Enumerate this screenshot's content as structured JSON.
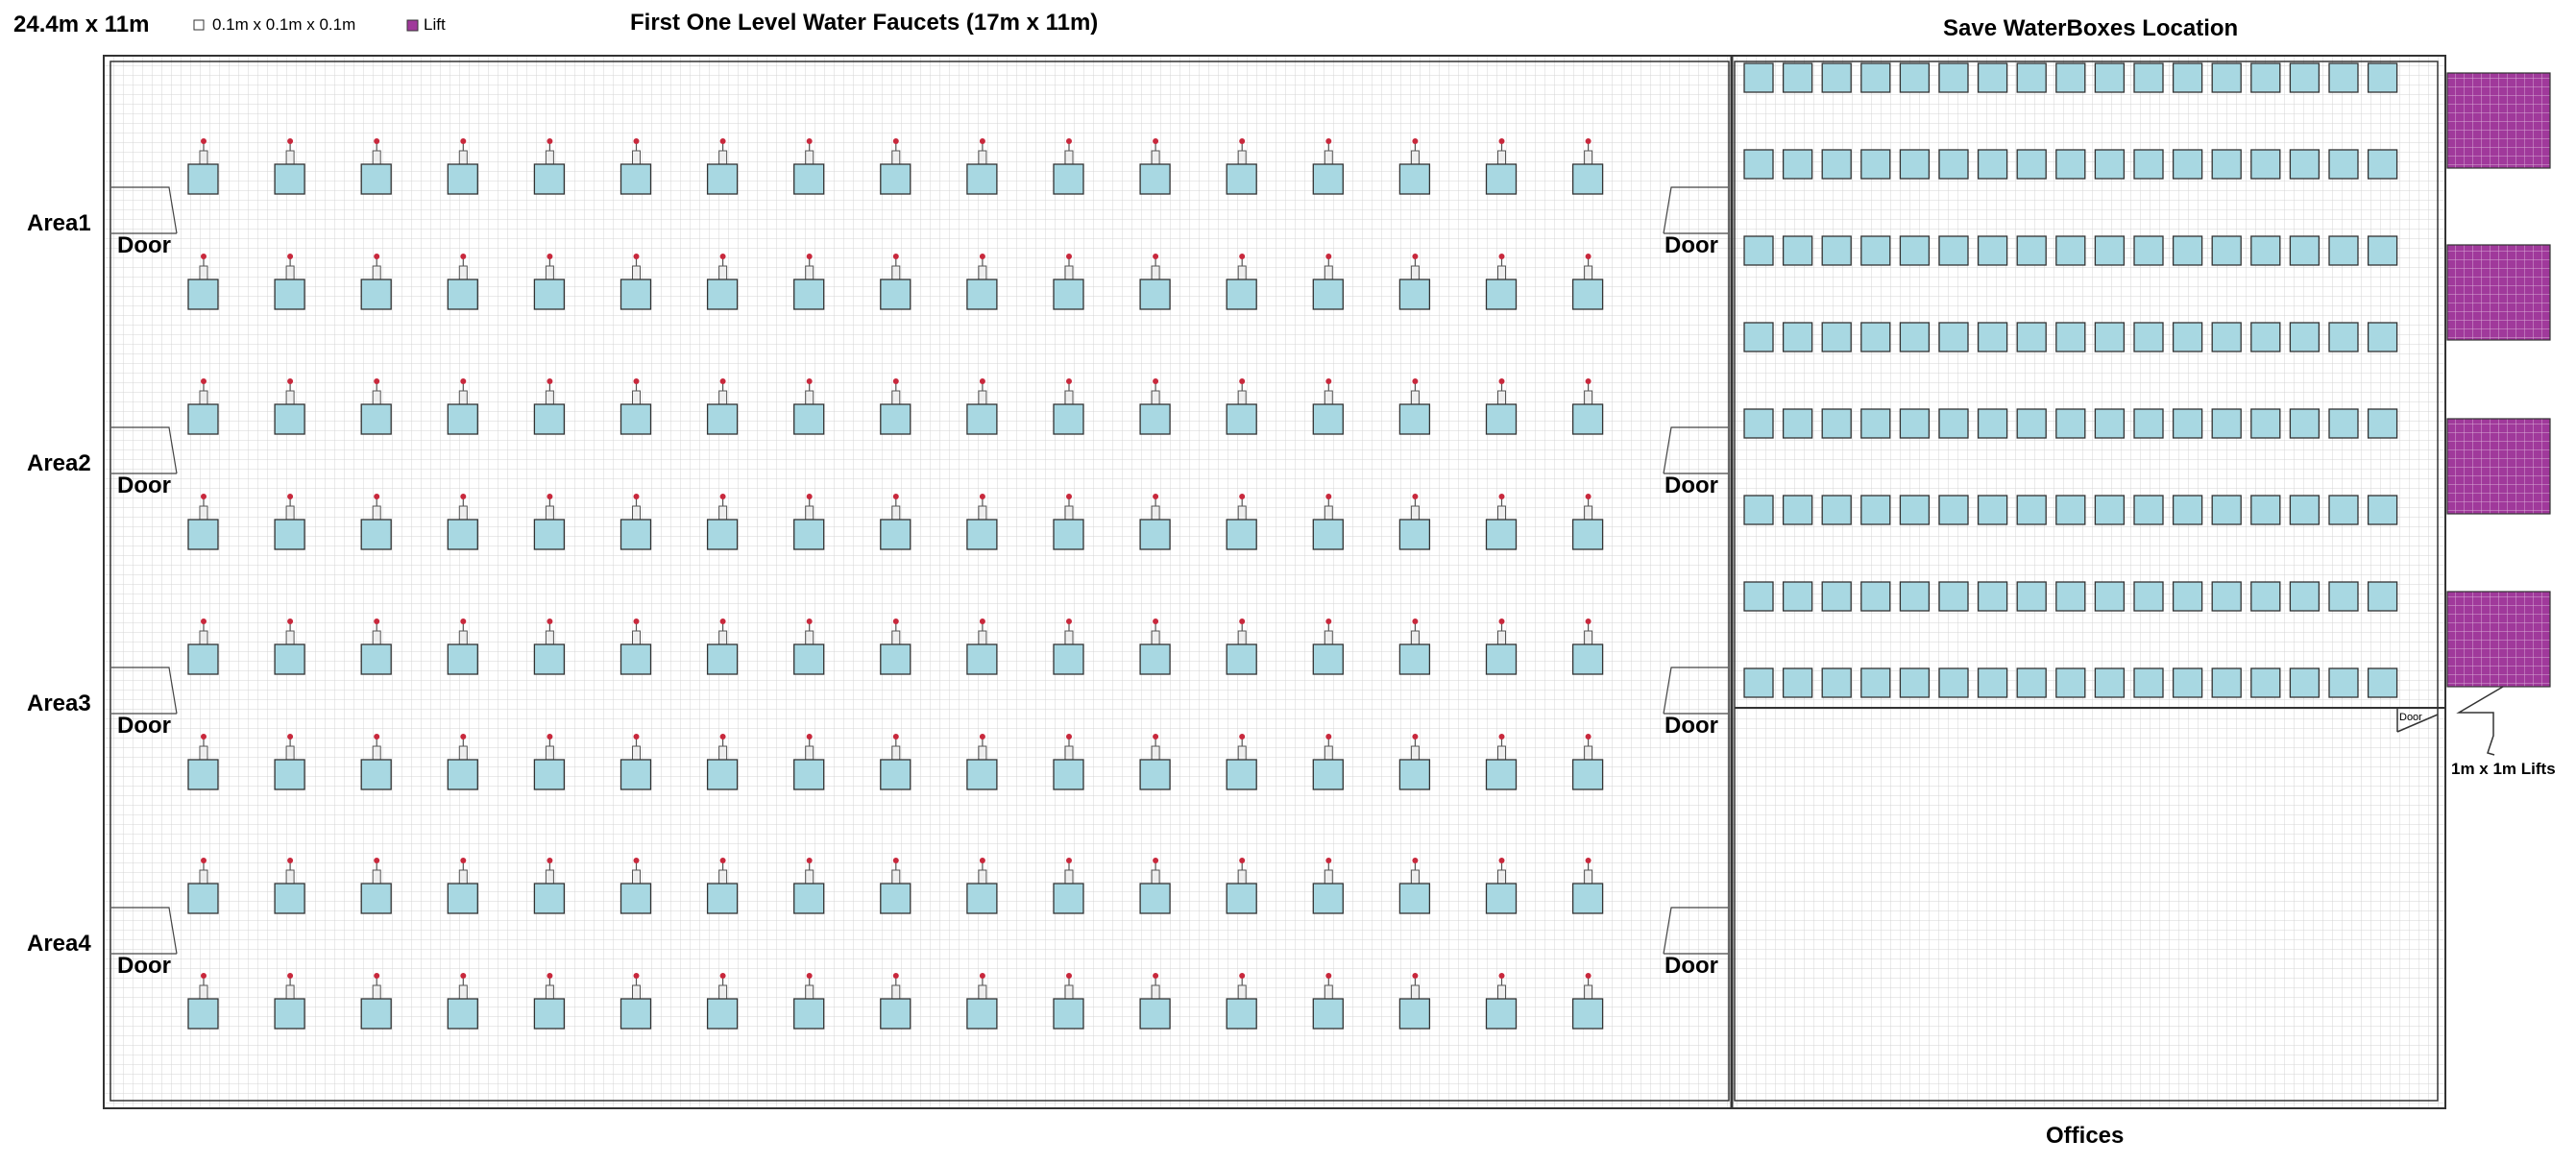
{
  "header": {
    "dimensions": "24.4m x 11m",
    "legend_cell": "0.1m x 0.1m x 0.1m",
    "legend_lift": "Lift",
    "left_title": "First One Level Water Faucets (17m x 11m)",
    "right_title": "Save WaterBoxes Location"
  },
  "areas": [
    "Area1",
    "Area2",
    "Area3",
    "Area4"
  ],
  "door_label": "Door",
  "office_door_label": "Door",
  "lifts_label": "1m x 1m Lifts",
  "offices_label": "Offices",
  "faucet_grid": {
    "columns": 17,
    "rows": 8
  },
  "waterbox_grid": {
    "columns": 17,
    "rows": 8
  },
  "lift_count": 4,
  "colors": {
    "faucet_box": "#a8d8e2",
    "waterbox": "#a8d8e2",
    "lift": "#a0399b",
    "lift_grid": "#d9a9d6",
    "grid_line": "#d2d2d2",
    "faucet_knob": "#c8283c",
    "outline": "#333333"
  }
}
